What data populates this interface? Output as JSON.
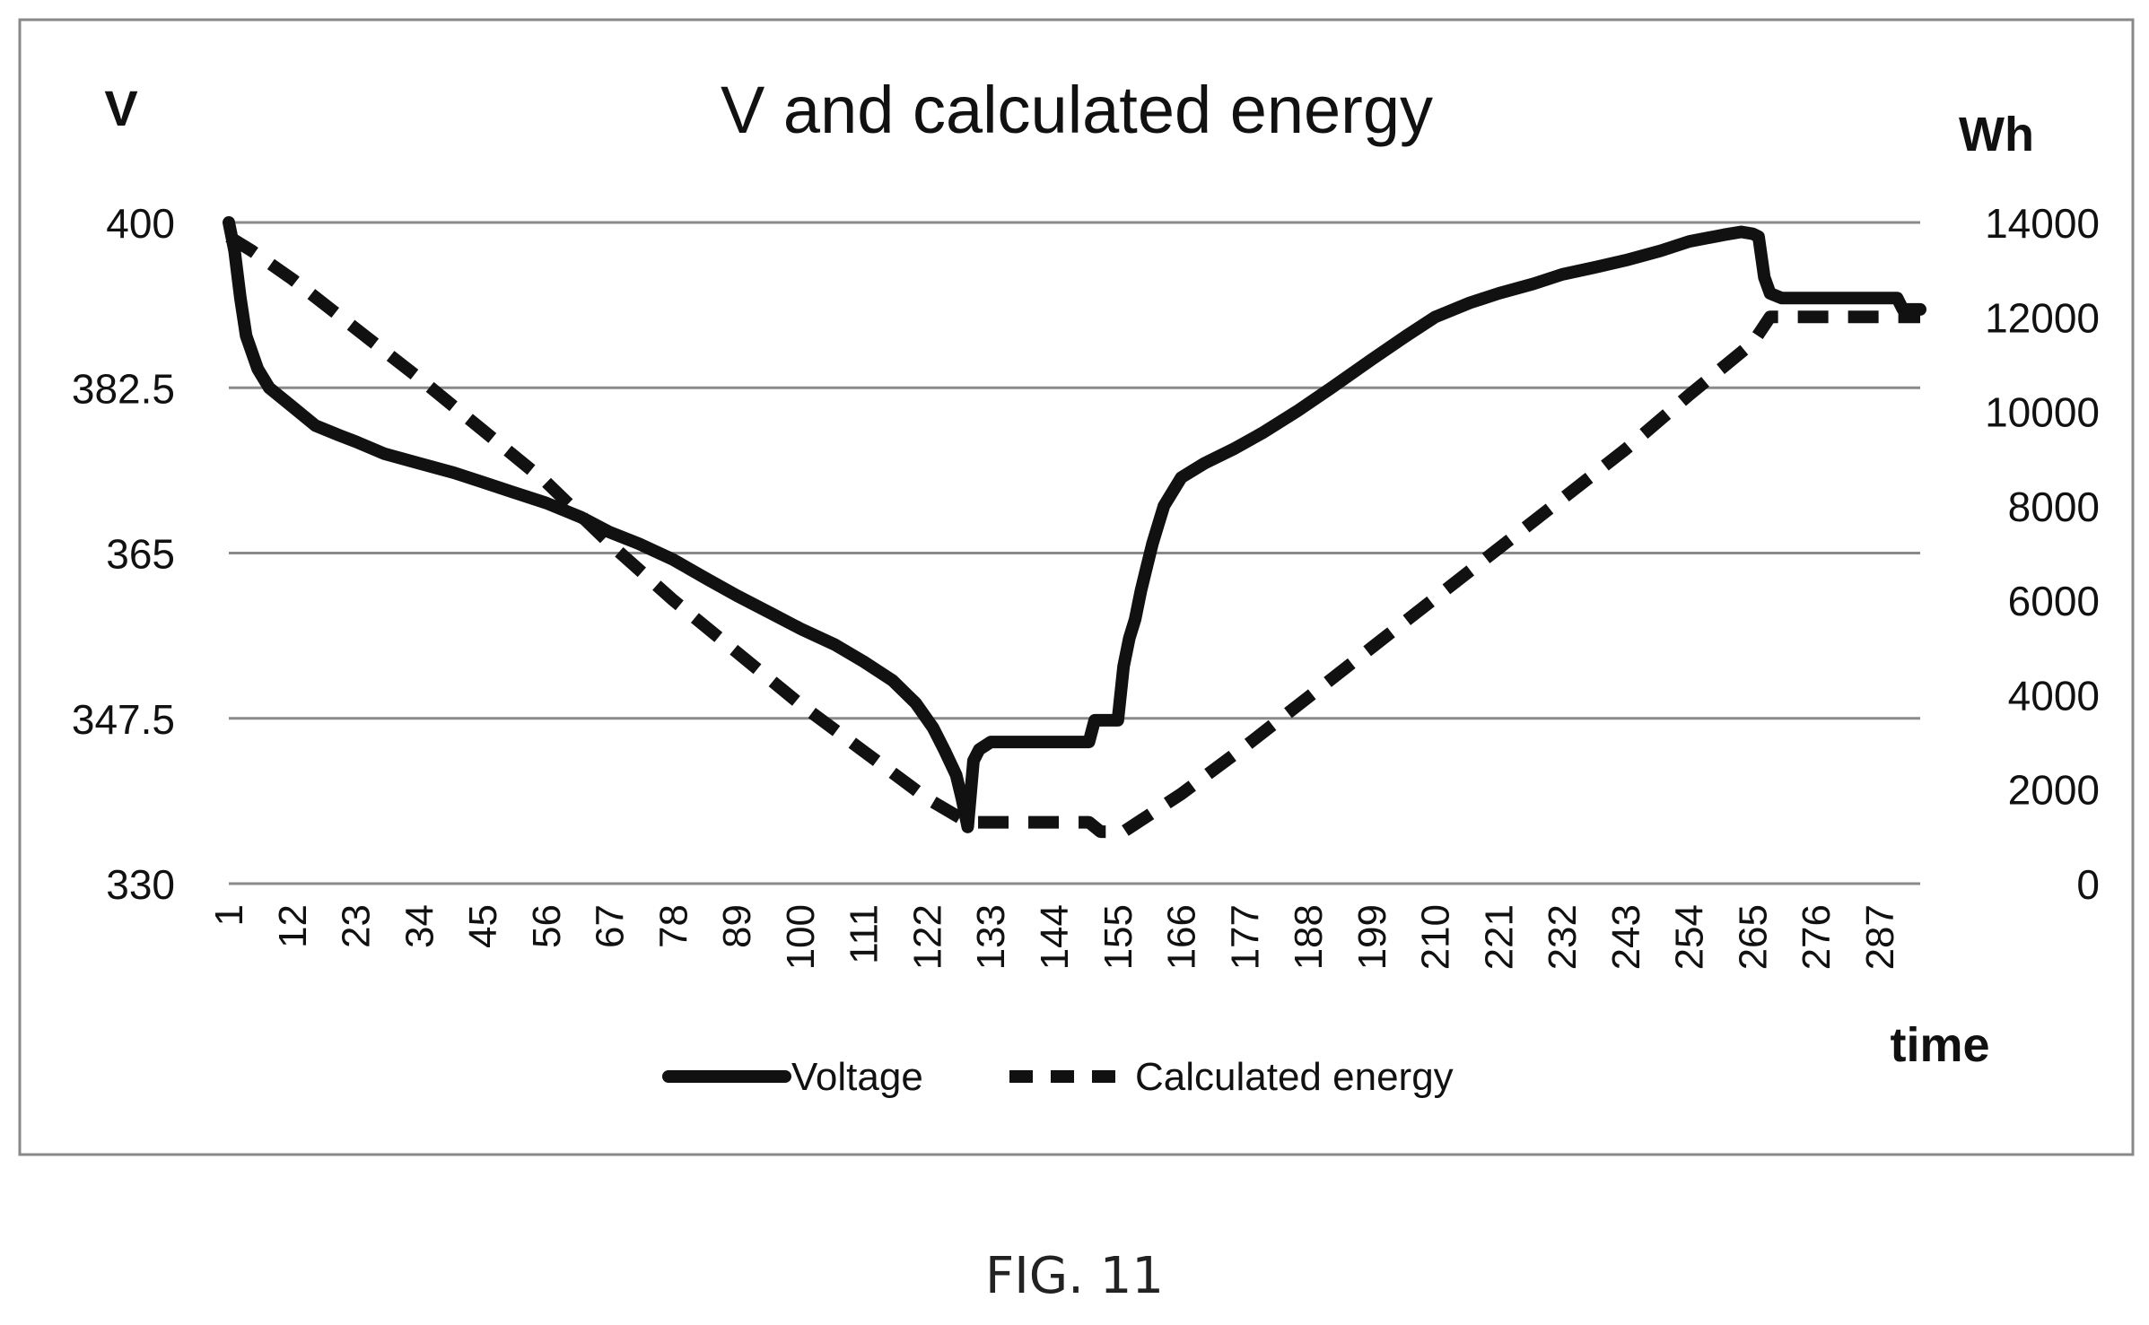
{
  "figure_label": "FIG. 11",
  "chart_data": {
    "type": "line",
    "title": "V and calculated energy",
    "xlabel": "time",
    "ylabel": "V",
    "y2label": "Wh",
    "x_ticks": [
      "1",
      "12",
      "23",
      "34",
      "45",
      "56",
      "67",
      "78",
      "89",
      "100",
      "111",
      "122",
      "133",
      "144",
      "155",
      "166",
      "177",
      "188",
      "199",
      "210",
      "221",
      "232",
      "243",
      "254",
      "265",
      "276",
      "287"
    ],
    "xlim": [
      1,
      294
    ],
    "ylim": [
      330,
      400
    ],
    "y_ticks": [
      "400",
      "382.5",
      "365",
      "347.5",
      "330"
    ],
    "y_tick_values": [
      400,
      382.5,
      365,
      347.5,
      330
    ],
    "y2lim": [
      0,
      14000
    ],
    "y2_ticks": [
      "14000",
      "12000",
      "10000",
      "8000",
      "6000",
      "4000",
      "2000",
      "0"
    ],
    "y2_tick_values": [
      14000,
      12000,
      10000,
      8000,
      6000,
      4000,
      2000,
      0
    ],
    "grid": "horizontal",
    "legend_position": "bottom",
    "series": [
      {
        "name": "Voltage",
        "axis": "left",
        "style": "solid",
        "color": "#111111",
        "x": [
          1,
          2,
          3,
          4,
          6,
          8,
          12,
          16,
          20,
          23,
          28,
          34,
          40,
          45,
          50,
          56,
          62,
          67,
          72,
          78,
          84,
          89,
          95,
          100,
          106,
          111,
          116,
          120,
          123,
          125,
          127,
          128,
          129,
          130,
          131,
          133,
          140,
          144,
          150,
          151,
          154,
          155,
          156,
          157,
          158,
          159,
          160,
          161,
          162,
          163,
          166,
          170,
          175,
          180,
          186,
          192,
          199,
          205,
          210,
          216,
          221,
          227,
          232,
          238,
          243,
          249,
          254,
          260,
          263,
          265,
          266,
          267,
          268,
          270,
          272,
          276,
          280,
          285,
          290,
          291,
          294
        ],
        "values": [
          400,
          397,
          392,
          388,
          384.5,
          382.5,
          380.5,
          378.5,
          377.5,
          376.8,
          375.5,
          374.5,
          373.5,
          372.5,
          371.5,
          370.3,
          368.8,
          367.2,
          366,
          364.3,
          362.2,
          360.5,
          358.6,
          357,
          355.3,
          353.5,
          351.5,
          349.1,
          346.5,
          344.1,
          341.5,
          339,
          336,
          343,
          344.2,
          345,
          345,
          345,
          345,
          347.3,
          347.3,
          347.3,
          353,
          356,
          358,
          361,
          363.5,
          366,
          368,
          370,
          373,
          374.5,
          376,
          377.7,
          380,
          382.5,
          385.5,
          388,
          390,
          391.5,
          392.5,
          393.5,
          394.5,
          395.3,
          396,
          397,
          398,
          398.7,
          399,
          398.8,
          398.5,
          394.2,
          392.5,
          392,
          392,
          392,
          392,
          392,
          392,
          390.8,
          390.8
        ]
      },
      {
        "name": "Calculated energy",
        "axis": "right",
        "style": "dashed",
        "color": "#111111",
        "x": [
          1,
          5,
          12,
          23,
          34,
          45,
          56,
          67,
          78,
          89,
          100,
          111,
          122,
          129,
          130,
          150,
          152,
          156,
          166,
          177,
          188,
          199,
          210,
          221,
          232,
          243,
          254,
          265,
          268,
          290,
          294
        ],
        "values": [
          13700,
          13400,
          12800,
          11750,
          10700,
          9600,
          8500,
          7200,
          6000,
          4900,
          3800,
          2800,
          1800,
          1300,
          1300,
          1300,
          1100,
          1100,
          1900,
          2900,
          3950,
          5000,
          6050,
          7100,
          8150,
          9200,
          10350,
          11450,
          12000,
          12000,
          12000
        ]
      }
    ]
  }
}
